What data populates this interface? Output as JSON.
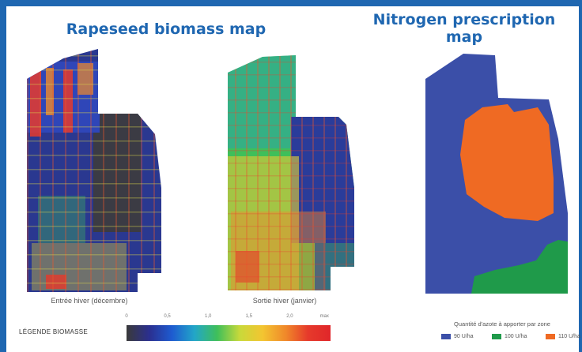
{
  "titles": {
    "biomass": "Rapeseed biomass map",
    "prescription_line1": "Nitrogen prescription",
    "prescription_line2": "map"
  },
  "captions": {
    "winter_entry": "Entrée hiver (décembre)",
    "winter_exit": "Sortie hiver (janvier)"
  },
  "biomass_legend": {
    "label": "LÉGENDE BIOMASSE",
    "ticks": [
      "0",
      "0,5",
      "1,0",
      "1,5",
      "2,0",
      "max"
    ],
    "colors": [
      "#3a3a3a",
      "#2b2f8f",
      "#1e5bd0",
      "#22a6c8",
      "#3fbf5a",
      "#c9d93a",
      "#f3c531",
      "#f08a2a",
      "#e63a2b",
      "#e0262a"
    ]
  },
  "nitrogen_legend": {
    "title": "Quantité d'azote à apporter par zone",
    "items": [
      {
        "label": "90 U/ha",
        "color": "#3b4fa8"
      },
      {
        "label": "100 U/ha",
        "color": "#1f9a4a"
      },
      {
        "label": "110 U/ha",
        "color": "#ef6a23"
      }
    ]
  },
  "colors": {
    "frame_blue": "#1f67b1",
    "zone_90": "#3b4fa8",
    "zone_100": "#1f9a4a",
    "zone_110": "#ef6a23"
  }
}
